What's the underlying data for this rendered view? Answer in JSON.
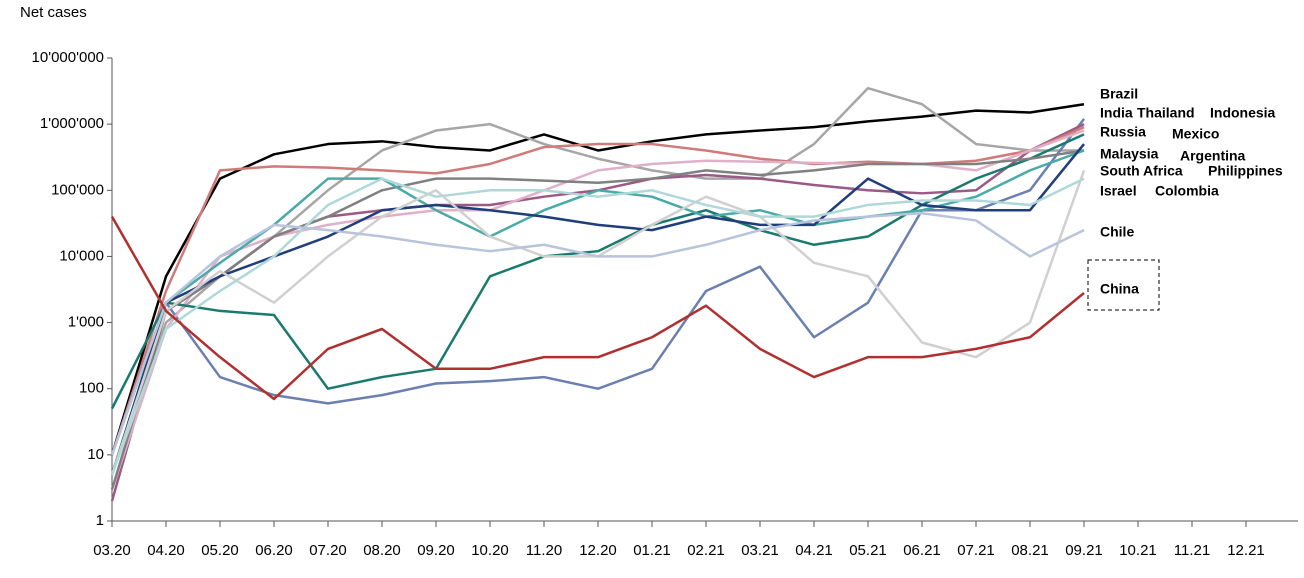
{
  "chart_data": {
    "type": "line",
    "y_label": "Net cases",
    "log_y": true,
    "categories": [
      "03.20",
      "04.20",
      "05.20",
      "06.20",
      "07.20",
      "08.20",
      "09.20",
      "10.20",
      "11.20",
      "12.20",
      "01.21",
      "02.21",
      "03.21",
      "04.21",
      "05.21",
      "06.21",
      "07.21",
      "08.21",
      "09.21",
      "10.21",
      "11.21",
      "12.21"
    ],
    "ylim": [
      1,
      10000000
    ],
    "yticks": [
      1,
      10,
      100,
      {
        "value": 1000,
        "label": "1'000"
      },
      {
        "value": 10000,
        "label": "10'000"
      },
      {
        "value": 100000,
        "label": "100'000"
      },
      {
        "value": 1000000,
        "label": "1'000'000"
      },
      {
        "value": 10000000,
        "label": "10'000'000"
      }
    ],
    "series": [
      {
        "name": "Brazil",
        "color": "#000000",
        "values": [
          10,
          5000,
          150000,
          350000,
          500000,
          550000,
          450000,
          400000,
          700000,
          400000,
          550000,
          700000,
          800000,
          900000,
          1100000,
          1300000,
          1600000,
          1500000,
          2000000,
          null,
          null,
          null
        ]
      },
      {
        "name": "India",
        "color": "#a6a6a6",
        "values": [
          5,
          1000,
          5000,
          20000,
          100000,
          400000,
          800000,
          1000000,
          500000,
          300000,
          200000,
          150000,
          150000,
          500000,
          3500000,
          2000000,
          500000,
          400000,
          400000,
          null,
          null,
          null
        ]
      },
      {
        "name": "Thailand",
        "color": "#6b7fb0",
        "values": [
          5,
          2000,
          150,
          80,
          60,
          80,
          120,
          130,
          150,
          100,
          200,
          3000,
          7000,
          600,
          2000,
          50000,
          50000,
          100000,
          1200000,
          null,
          null,
          null
        ]
      },
      {
        "name": "Indonesia",
        "color": "#9b5a86",
        "values": [
          2,
          1500,
          5000,
          20000,
          40000,
          50000,
          60000,
          60000,
          80000,
          100000,
          150000,
          170000,
          150000,
          120000,
          100000,
          90000,
          100000,
          400000,
          1000000,
          null,
          null,
          null
        ]
      },
      {
        "name": "Russia",
        "color": "#d07a7a",
        "values": [
          10,
          3000,
          200000,
          230000,
          220000,
          200000,
          180000,
          250000,
          450000,
          500000,
          500000,
          400000,
          300000,
          250000,
          270000,
          250000,
          280000,
          400000,
          900000,
          null,
          null,
          null
        ]
      },
      {
        "name": "Mexico",
        "color": "#e0b0c8",
        "values": [
          3,
          800,
          10000,
          20000,
          30000,
          40000,
          50000,
          50000,
          100000,
          200000,
          250000,
          280000,
          270000,
          260000,
          250000,
          250000,
          200000,
          400000,
          800000,
          null,
          null,
          null
        ]
      },
      {
        "name": "Malaysia",
        "color": "#1a7a6e",
        "values": [
          50,
          2000,
          1500,
          1300,
          100,
          150,
          200,
          5000,
          10000,
          12000,
          30000,
          50000,
          25000,
          15000,
          20000,
          60000,
          150000,
          300000,
          700000,
          null,
          null,
          null
        ]
      },
      {
        "name": "Argentina",
        "color": "#808080",
        "values": [
          3,
          1500,
          5000,
          20000,
          40000,
          100000,
          150000,
          150000,
          140000,
          130000,
          150000,
          200000,
          170000,
          200000,
          250000,
          250000,
          250000,
          300000,
          400000,
          null,
          null,
          null
        ]
      },
      {
        "name": "South Africa",
        "color": "#4aaaa8",
        "values": [
          10,
          2000,
          8000,
          30000,
          150000,
          150000,
          50000,
          20000,
          50000,
          100000,
          80000,
          40000,
          50000,
          30000,
          40000,
          50000,
          80000,
          200000,
          400000,
          null,
          null,
          null
        ]
      },
      {
        "name": "Philippines",
        "color": "#1f3e7a",
        "values": [
          5,
          2000,
          5000,
          10000,
          20000,
          50000,
          60000,
          50000,
          40000,
          30000,
          25000,
          40000,
          30000,
          30000,
          150000,
          60000,
          50000,
          50000,
          500000,
          null,
          null,
          null
        ]
      },
      {
        "name": "Israel",
        "color": "#d0d0d0",
        "values": [
          5,
          1500,
          6000,
          2000,
          10000,
          40000,
          100000,
          20000,
          10000,
          10000,
          30000,
          80000,
          40000,
          8000,
          5000,
          500,
          300,
          1000,
          200000,
          null,
          null,
          null
        ]
      },
      {
        "name": "Colombia",
        "color": "#b0d8d8",
        "values": [
          5,
          800,
          3000,
          10000,
          60000,
          150000,
          80000,
          100000,
          100000,
          80000,
          100000,
          60000,
          40000,
          40000,
          60000,
          70000,
          70000,
          60000,
          150000,
          null,
          null,
          null
        ]
      },
      {
        "name": "Chile",
        "color": "#b8c4dc",
        "values": [
          10,
          2000,
          10000,
          30000,
          25000,
          20000,
          15000,
          12000,
          15000,
          10000,
          10000,
          15000,
          25000,
          35000,
          40000,
          45000,
          35000,
          10000,
          25000,
          null,
          null,
          null
        ]
      },
      {
        "name": "China",
        "color": "#b03030",
        "values": [
          40000,
          1500,
          300,
          70,
          400,
          800,
          200,
          200,
          300,
          300,
          600,
          1800,
          400,
          150,
          300,
          300,
          400,
          600,
          2800,
          null,
          null,
          null
        ]
      }
    ]
  }
}
